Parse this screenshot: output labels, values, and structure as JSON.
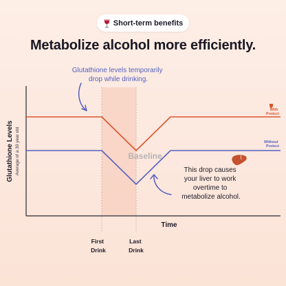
{
  "badge": {
    "text": "Short-term benefits",
    "icon": "wine-glass-icon"
  },
  "headline": "Metabolize alcohol more efficiently.",
  "annotations": {
    "top_callout": [
      "Glutathione levels temporarily",
      "drop while drinking."
    ],
    "bottom_callout": [
      "This drop causes",
      "your liver to work",
      "overtime to",
      "metabolize alcohol."
    ],
    "liver_icon": "liver-icon"
  },
  "colors": {
    "with_protect": "#d9552f",
    "without_protect": "#5560c0",
    "highlight_band": "#f6c6b4",
    "axis": "#2a2730"
  },
  "chart_data": {
    "type": "line",
    "ylabel": "Glutathione Levels",
    "ylabel_sub": "Average of a 30 year old",
    "xlabel": "Time",
    "x_events": [
      {
        "label_lines": [
          "First",
          "Drink"
        ]
      },
      {
        "label_lines": [
          "Last",
          "Drink"
        ]
      }
    ],
    "baseline_label": "Baseline",
    "series": [
      {
        "name_lines": [
          "With",
          "Protect"
        ],
        "points": [
          [
            0,
            2
          ],
          [
            1,
            2
          ],
          [
            2,
            1
          ],
          [
            3,
            2
          ],
          [
            4,
            2
          ]
        ]
      },
      {
        "name_lines": [
          "Without",
          "Protect"
        ],
        "points": [
          [
            0,
            1
          ],
          [
            1,
            1
          ],
          [
            2,
            0
          ],
          [
            3,
            1
          ],
          [
            4,
            1
          ]
        ]
      }
    ]
  }
}
